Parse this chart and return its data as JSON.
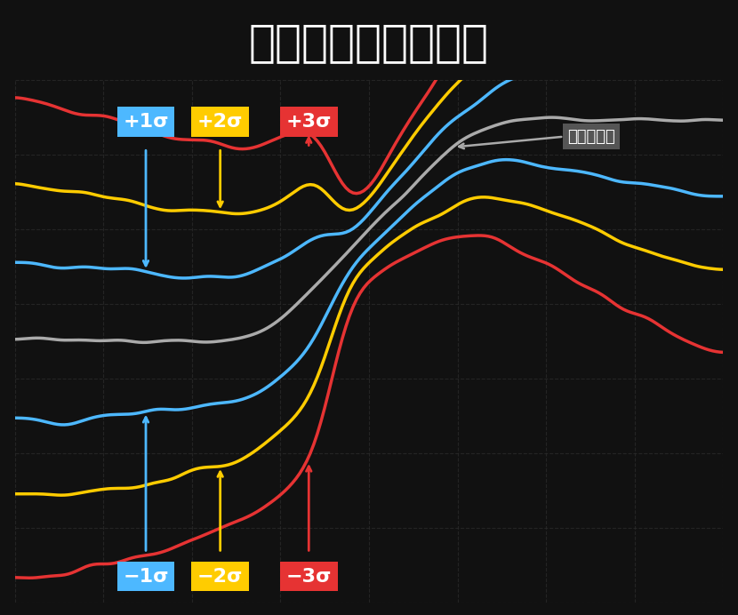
{
  "title": "ボリンジャーバンド",
  "title_bg": "#87CEEB",
  "title_color": "white",
  "bg_color": "#111111",
  "plot_bg": "#0a0a0a",
  "grid_color": "#333333",
  "line_colors": {
    "ma": "#aaaaaa",
    "band1": "#4db8ff",
    "band2": "#ffcc00",
    "band3": "#e63333"
  },
  "label_plus": [
    "+1σ",
    "+2σ",
    "+3σ"
  ],
  "label_minus": [
    "−1σ",
    "−2σ",
    "−3σ"
  ],
  "label_bg": [
    "#4db8ff",
    "#ffcc00",
    "#e63333"
  ],
  "ma_label": "移動平均線"
}
